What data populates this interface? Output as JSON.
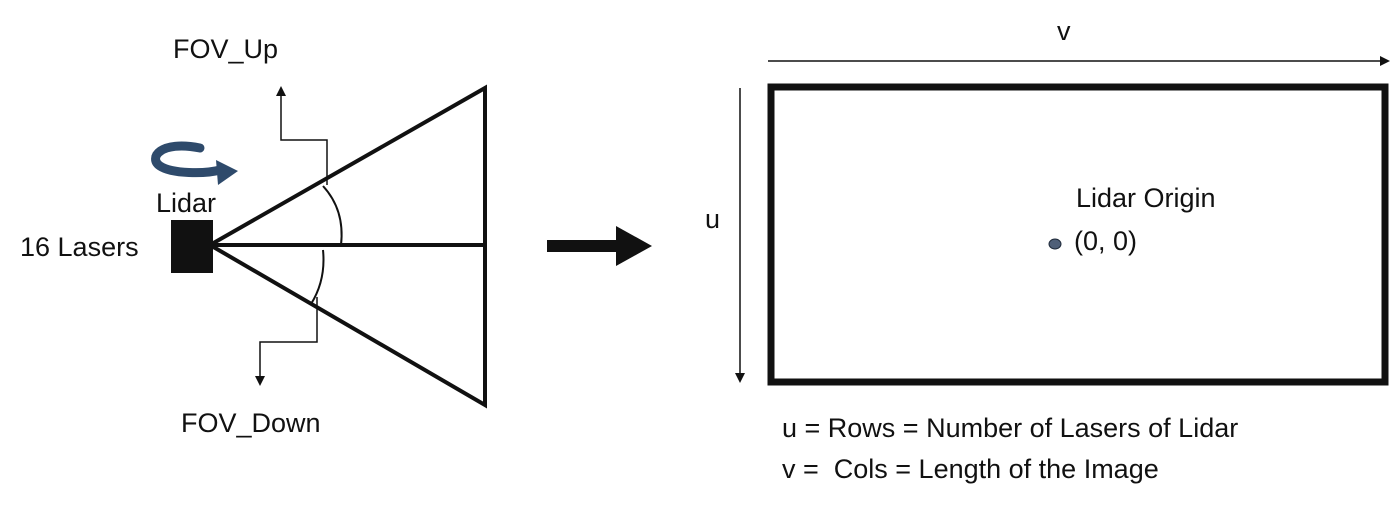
{
  "left_diagram": {
    "fov_up_label": "FOV_Up",
    "fov_down_label": "FOV_Down",
    "lidar_label": "Lidar",
    "lasers_label": "16 Lasers",
    "rotation_icon": "rotation-arrow-icon"
  },
  "transition": {
    "icon": "arrow-right-icon"
  },
  "right_diagram": {
    "v_axis_label": "v",
    "u_axis_label": "u",
    "origin_label": "Lidar Origin",
    "origin_coords": "(0, 0)",
    "legend": {
      "u_line": "u = Rows = Number of Lasers of Lidar",
      "v_line": "v =  Cols = Length of the Image"
    }
  },
  "colors": {
    "stroke": "#111111",
    "lidar_box": "#111111",
    "rotation_arrow": "#2e4a6b",
    "origin_dot": "#4f5f78",
    "background": "#ffffff"
  }
}
